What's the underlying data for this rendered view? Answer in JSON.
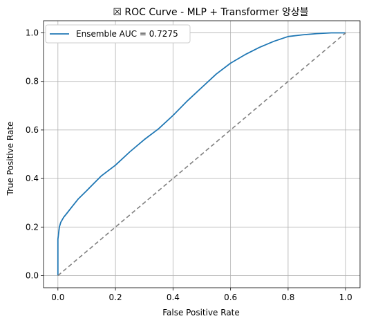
{
  "chart_data": {
    "type": "line",
    "title": "☒ ROC Curve - MLP + Transformer 앙상블",
    "xlabel": "False Positive Rate",
    "ylabel": "True Positive Rate",
    "xlim": [
      -0.05,
      1.05
    ],
    "ylim": [
      -0.05,
      1.05
    ],
    "xticks": [
      "0.0",
      "0.2",
      "0.4",
      "0.6",
      "0.8",
      "1.0"
    ],
    "yticks": [
      "0.0",
      "0.2",
      "0.4",
      "0.6",
      "0.8",
      "1.0"
    ],
    "grid": true,
    "legend_position": "top-left",
    "series": [
      {
        "name": "Ensemble AUC = 0.7275",
        "color": "#1f77b4",
        "style": "solid",
        "x": [
          0.0,
          0.0,
          0.0,
          0.005,
          0.01,
          0.02,
          0.03,
          0.05,
          0.07,
          0.1,
          0.15,
          0.2,
          0.25,
          0.3,
          0.35,
          0.4,
          0.45,
          0.5,
          0.55,
          0.6,
          0.65,
          0.7,
          0.75,
          0.8,
          0.85,
          0.9,
          0.95,
          1.0
        ],
        "y": [
          0.0,
          0.1,
          0.15,
          0.2,
          0.22,
          0.24,
          0.255,
          0.285,
          0.315,
          0.35,
          0.41,
          0.455,
          0.51,
          0.56,
          0.605,
          0.66,
          0.72,
          0.775,
          0.83,
          0.875,
          0.91,
          0.94,
          0.965,
          0.985,
          0.992,
          0.997,
          1.0,
          1.0
        ]
      },
      {
        "name": "",
        "color": "#808080",
        "style": "dashed",
        "x": [
          0.0,
          1.0
        ],
        "y": [
          0.0,
          1.0
        ]
      }
    ]
  }
}
